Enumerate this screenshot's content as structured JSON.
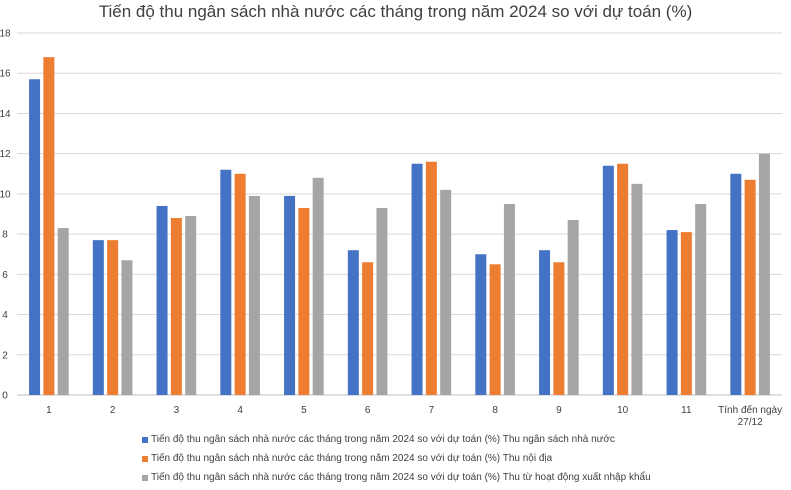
{
  "chart_data": {
    "type": "bar",
    "title": "Tiến độ thu ngân sách nhà nước các tháng trong năm 2024 so với dự toán (%)",
    "categories": [
      "1",
      "2",
      "3",
      "4",
      "5",
      "6",
      "7",
      "8",
      "9",
      "10",
      "11",
      "Tính đến ngày 27/12"
    ],
    "y_ticks": [
      "0",
      "2",
      "4",
      "6",
      "8",
      "10",
      "12",
      "14",
      "16",
      "18"
    ],
    "ylim": [
      0,
      18
    ],
    "grid": true,
    "legend_position": "bottom",
    "series": [
      {
        "name": "Tiến độ thu ngân sách nhà nước các tháng trong năm 2024 so với dự toán (%) Thu ngân sách nhà nước",
        "color": "#4472c4",
        "values": [
          15.7,
          7.7,
          9.4,
          11.2,
          9.9,
          7.2,
          11.5,
          7.0,
          7.2,
          11.4,
          8.2,
          11.0
        ]
      },
      {
        "name": "Tiến độ thu ngân sách nhà nước các tháng trong năm 2024 so với dự toán (%) Thu nội địa",
        "color": "#ed7d31",
        "values": [
          16.8,
          7.7,
          8.8,
          11.0,
          9.3,
          6.6,
          11.6,
          6.5,
          6.6,
          11.5,
          8.1,
          10.7
        ]
      },
      {
        "name": "Tiến độ thu ngân sách nhà nước các tháng trong năm 2024 so với dự toán (%) Thu từ hoạt động xuất nhập khẩu",
        "color": "#a5a5a5",
        "values": [
          8.3,
          6.7,
          8.9,
          9.9,
          10.8,
          9.3,
          10.2,
          9.5,
          8.7,
          10.5,
          9.5,
          12.0
        ]
      }
    ]
  }
}
